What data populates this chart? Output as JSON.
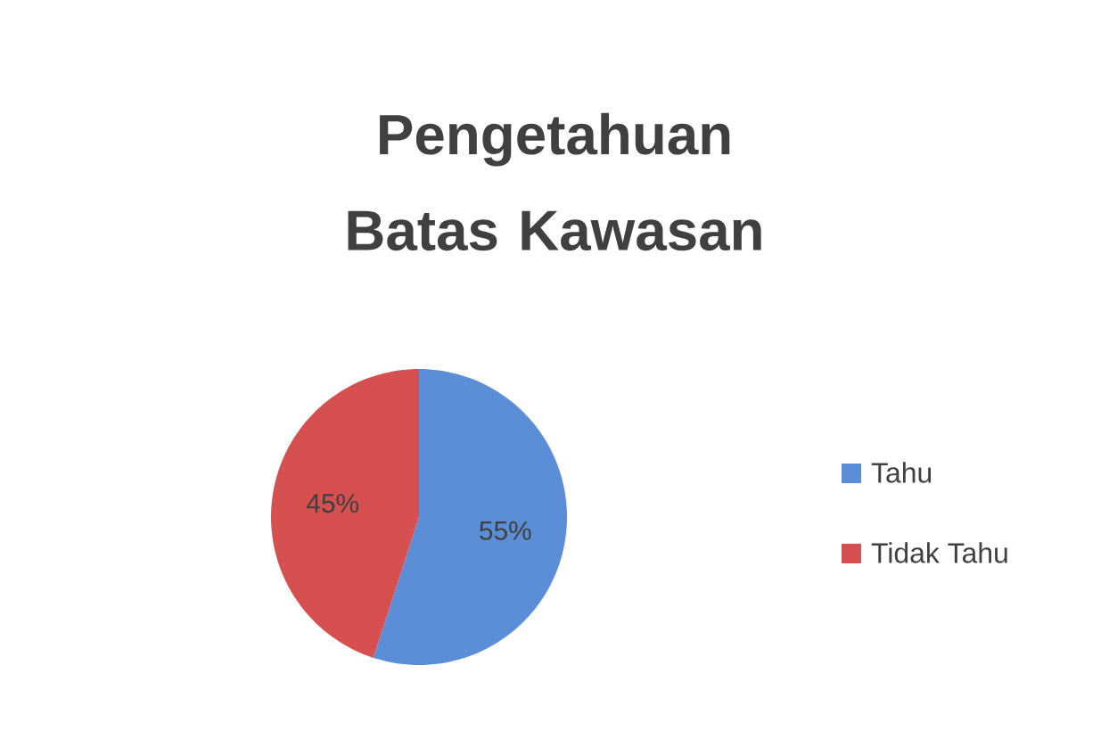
{
  "chart_data": {
    "type": "pie",
    "title": "Pengetahuan Batas Kawasan",
    "categories": [
      "Tahu",
      "Tidak Tahu"
    ],
    "values": [
      55,
      45
    ],
    "colors": [
      "#5b8ed6",
      "#d5504f"
    ],
    "value_labels": [
      "55%",
      "45%"
    ],
    "legend": "right"
  }
}
